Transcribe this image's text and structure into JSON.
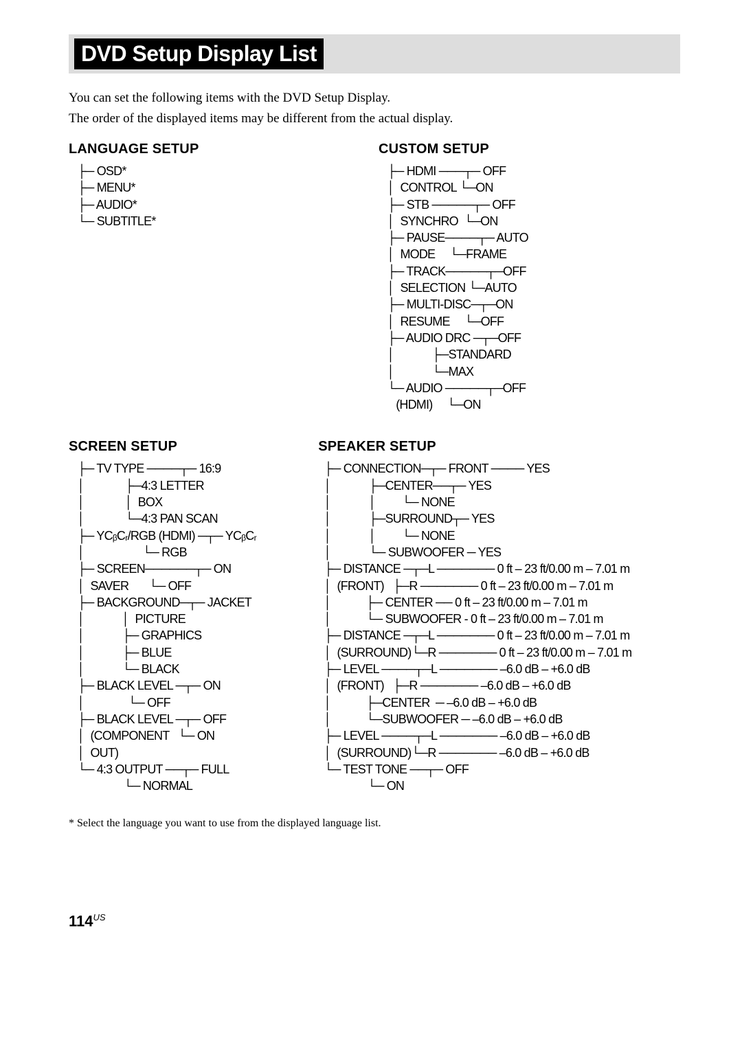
{
  "title": "DVD Setup Display List",
  "intro1": "You can set the following items with the DVD Setup Display.",
  "intro2": "The order of the displayed items may be different from the actual display.",
  "lang": {
    "heading": "LANGUAGE SETUP",
    "l1": "   ├─ OSD*",
    "l2": "   ├─ MENU*",
    "l3": "   ├─ AUDIO*",
    "l4": "   └─ SUBTITLE*"
  },
  "custom": {
    "heading": "CUSTOM SETUP",
    "c1": "   ├─ HDMI ───┬─ OFF",
    "c2": "   │  CONTROL └─ON",
    "c3": "   ├─ STB ─────┬─ OFF",
    "c4": "   │  SYNCHRO  └─ON",
    "c5": "   ├─ PAUSE────┬─ AUTO",
    "c6": "   │  MODE     └─FRAME",
    "c7": "   ├─ TRACK─────┬─OFF",
    "c8": "   │  SELECTION └─AUTO",
    "c9": "   ├─ MULTI-DISC─┬─ON",
    "c10": "   │  RESUME     └─OFF",
    "c11": "   ├─ AUDIO DRC ─┬─OFF",
    "c12": "   │             ├─STANDARD",
    "c13": "   │             └─MAX",
    "c14": "   └─ AUDIO ─────┬─OFF",
    "c15": "      (HDMI)     └─ON"
  },
  "screen": {
    "heading": "SCREEN SETUP",
    "s1": "   ├─ TV TYPE ────┬─ 16:9",
    "s2": "   │              ├─4:3 LETTER",
    "s3": "   │              │  BOX",
    "s4": "   │              └─4:3 PAN SCAN",
    "s5": "   ├─ YCᵦCᵣ/RGB (HDMI) ─┬─ YCᵦCᵣ",
    "s6": "   │                    └─ RGB",
    "s7": "   ├─ SCREEN──────┬─ ON",
    "s8": "   │  SAVER       └─ OFF",
    "s9": "   ├─ BACKGROUND─┬─ JACKET",
    "s10": "   │             │  PICTURE",
    "s11": "   │             ├─ GRAPHICS",
    "s12": "   │             ├─ BLUE",
    "s13": "   │             └─ BLACK",
    "s14": "   ├─ BLACK LEVEL ─┬─ ON",
    "s15": "   │               └─ OFF",
    "s16": "   ├─ BLACK LEVEL ─┬─ OFF",
    "s17": "   │  (COMPONENT   └─ ON",
    "s18": "   │  OUT)",
    "s19": "   └─ 4:3 OUTPUT ──┬─ FULL",
    "s20": "                   └─ NORMAL"
  },
  "speaker": {
    "heading": "SPEAKER SETUP",
    "p1": "  ├─ CONNECTION─┬─ FRONT ──── YES",
    "p2": "  │             ├─CENTER──┬─ YES",
    "p3": "  │             │         └─ NONE",
    "p4": "  │             ├─SURROUND┬─ YES",
    "p5": "  │             │         └─ NONE",
    "p6": "  │             └─ SUBWOOFER ─ YES",
    "p7": "  ├─ DISTANCE ─┬─L ─────── 0 ft – 23 ft/0.00 m – 7.01 m",
    "p8": "  │  (FRONT)   ├─R ─────── 0 ft – 23 ft/0.00 m – 7.01 m",
    "p9": "  │            ├─ CENTER ── 0 ft – 23 ft/0.00 m – 7.01 m",
    "p10": "  │            └─ SUBWOOFER - 0 ft – 23 ft/0.00 m – 7.01 m",
    "p11": "  ├─ DISTANCE ─┬─L ─────── 0 ft – 23 ft/0.00 m – 7.01 m",
    "p12": "  │  (SURROUND)└─R ─────── 0 ft – 23 ft/0.00 m – 7.01 m",
    "p13": "  ├─ LEVEL ────┬─L ─────── –6.0 dB – +6.0 dB",
    "p14": "  │  (FRONT)   ├─R ─────── –6.0 dB – +6.0 dB",
    "p15": "  │            ├─CENTER  ─ –6.0 dB – +6.0 dB",
    "p16": "  │            └─SUBWOOFER ─ –6.0 dB – +6.0 dB",
    "p17": "  ├─ LEVEL ────┬─L ─────── –6.0 dB – +6.0 dB",
    "p18": "  │  (SURROUND)└─R ─────── –6.0 dB – +6.0 dB",
    "p19": "  └─ TEST TONE ──┬─ OFF",
    "p20": "                 └─ ON"
  },
  "footnote": "*  Select the language you want to use from the displayed language list.",
  "pagenum": "114",
  "pagereg": "US"
}
